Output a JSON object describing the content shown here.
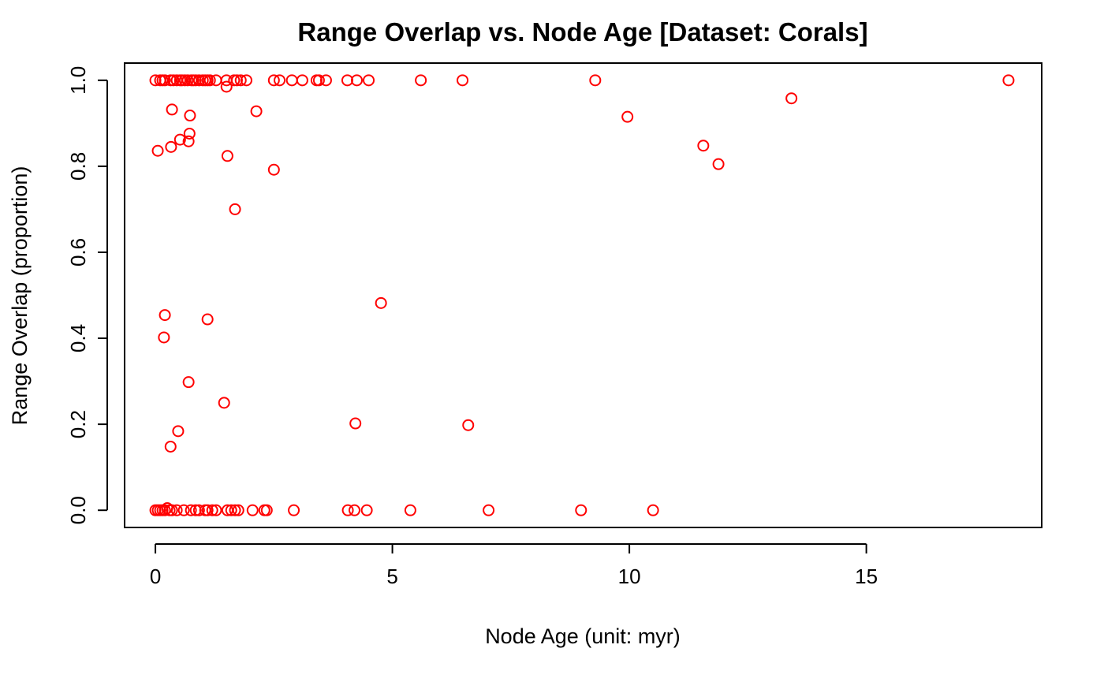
{
  "chart_data": {
    "type": "scatter",
    "title": "Range Overlap vs. Node Age [Dataset: Corals]",
    "xlabel": "Node Age (unit: myr)",
    "ylabel": "Range Overlap (proportion)",
    "xlim": [
      -0.65,
      18.7
    ],
    "ylim": [
      -0.04,
      1.04
    ],
    "xticks": [
      "0",
      "5",
      "10",
      "15"
    ],
    "xtick_values": [
      0,
      5,
      10,
      15
    ],
    "yticks": [
      "0.0",
      "0.2",
      "0.4",
      "0.6",
      "0.8",
      "1.0"
    ],
    "ytick_values": [
      0,
      0.2,
      0.4,
      0.6,
      0.8,
      1.0
    ],
    "grid": false,
    "point_color": "#ff0000",
    "series": [
      {
        "points": [
          [
            0.0,
            1.0
          ],
          [
            0.1,
            1.0
          ],
          [
            0.15,
            1.0
          ],
          [
            0.2,
            1.0
          ],
          [
            0.32,
            1.0
          ],
          [
            0.38,
            1.0
          ],
          [
            0.45,
            1.0
          ],
          [
            0.52,
            1.0
          ],
          [
            0.56,
            1.0
          ],
          [
            0.62,
            1.0
          ],
          [
            0.68,
            1.0
          ],
          [
            0.76,
            1.0
          ],
          [
            0.8,
            1.0
          ],
          [
            0.85,
            1.0
          ],
          [
            0.92,
            1.0
          ],
          [
            1.0,
            1.0
          ],
          [
            1.05,
            1.0
          ],
          [
            1.1,
            1.0
          ],
          [
            1.15,
            1.0
          ],
          [
            1.28,
            1.0
          ],
          [
            1.5,
            1.0
          ],
          [
            1.66,
            1.0
          ],
          [
            1.72,
            1.0
          ],
          [
            1.8,
            1.0
          ],
          [
            1.92,
            1.0
          ],
          [
            2.5,
            1.0
          ],
          [
            2.62,
            1.0
          ],
          [
            2.88,
            1.0
          ],
          [
            3.1,
            1.0
          ],
          [
            3.4,
            1.0
          ],
          [
            3.45,
            1.0
          ],
          [
            3.6,
            1.0
          ],
          [
            4.05,
            1.0
          ],
          [
            4.25,
            1.0
          ],
          [
            4.5,
            1.0
          ],
          [
            5.6,
            1.0
          ],
          [
            6.48,
            1.0
          ],
          [
            9.28,
            1.0
          ],
          [
            18.0,
            1.0
          ],
          [
            1.5,
            0.985
          ],
          [
            13.42,
            0.958
          ],
          [
            0.35,
            0.932
          ],
          [
            2.13,
            0.928
          ],
          [
            0.73,
            0.918
          ],
          [
            9.96,
            0.915
          ],
          [
            0.72,
            0.876
          ],
          [
            0.52,
            0.862
          ],
          [
            0.7,
            0.858
          ],
          [
            11.56,
            0.848
          ],
          [
            0.33,
            0.845
          ],
          [
            0.05,
            0.836
          ],
          [
            1.52,
            0.824
          ],
          [
            11.88,
            0.805
          ],
          [
            2.5,
            0.792
          ],
          [
            1.68,
            0.7
          ],
          [
            4.76,
            0.482
          ],
          [
            0.2,
            0.454
          ],
          [
            1.1,
            0.444
          ],
          [
            0.18,
            0.402
          ],
          [
            0.7,
            0.298
          ],
          [
            1.45,
            0.25
          ],
          [
            4.22,
            0.202
          ],
          [
            6.6,
            0.198
          ],
          [
            0.48,
            0.184
          ],
          [
            0.32,
            0.148
          ],
          [
            0.0,
            0.0
          ],
          [
            0.05,
            0.0
          ],
          [
            0.1,
            0.0
          ],
          [
            0.15,
            0.0
          ],
          [
            0.2,
            0.0
          ],
          [
            0.25,
            0.005
          ],
          [
            0.3,
            0.0
          ],
          [
            0.35,
            0.0
          ],
          [
            0.45,
            0.0
          ],
          [
            0.6,
            0.0
          ],
          [
            0.75,
            0.0
          ],
          [
            0.85,
            0.0
          ],
          [
            0.92,
            0.0
          ],
          [
            1.05,
            0.0
          ],
          [
            1.1,
            0.0
          ],
          [
            1.2,
            0.0
          ],
          [
            1.28,
            0.0
          ],
          [
            1.52,
            0.0
          ],
          [
            1.6,
            0.0
          ],
          [
            1.68,
            0.0
          ],
          [
            1.75,
            0.0
          ],
          [
            2.05,
            0.0
          ],
          [
            2.3,
            0.0
          ],
          [
            2.35,
            0.0
          ],
          [
            2.92,
            0.0
          ],
          [
            4.06,
            0.0
          ],
          [
            4.2,
            0.0
          ],
          [
            4.46,
            0.0
          ],
          [
            5.38,
            0.0
          ],
          [
            7.03,
            0.0
          ],
          [
            8.98,
            0.0
          ],
          [
            10.5,
            0.0
          ]
        ]
      }
    ]
  }
}
